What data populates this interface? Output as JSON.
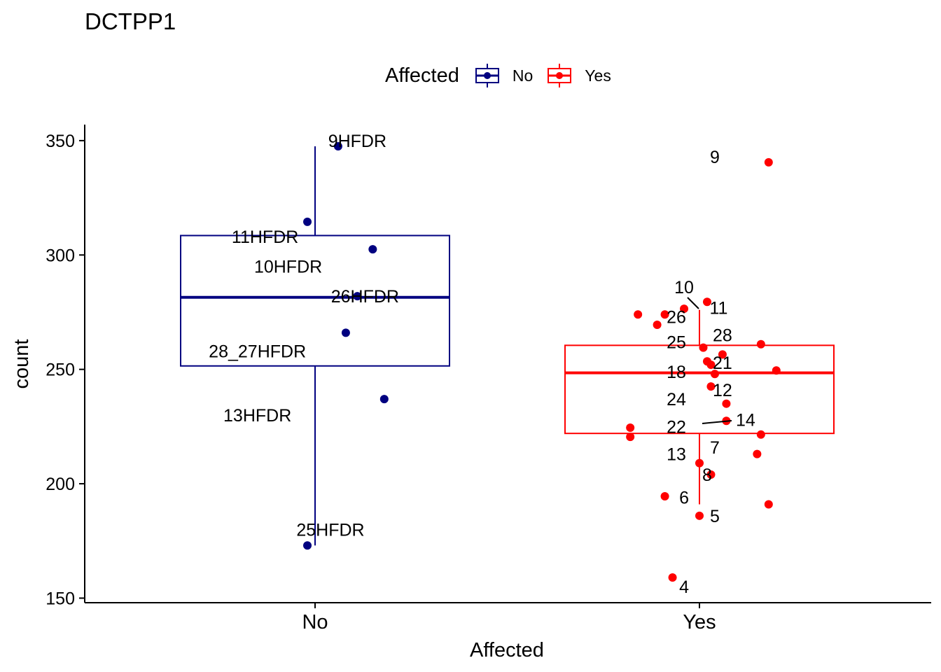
{
  "chart_data": {
    "type": "boxplot",
    "title": "DCTPP1",
    "xlabel": "Affected",
    "ylabel": "count",
    "categories": [
      "No",
      "Yes"
    ],
    "ylim": [
      148,
      357
    ],
    "yticks": [
      150,
      200,
      250,
      300,
      350
    ],
    "grid": false,
    "legend": {
      "title": "Affected",
      "position": "top",
      "entries": [
        {
          "label": "No",
          "color": "#000080"
        },
        {
          "label": "Yes",
          "color": "#FF0000"
        }
      ]
    },
    "boxes": [
      {
        "category": "No",
        "color": "#000080",
        "q1": 251.5,
        "median": 281.5,
        "q3": 308.5,
        "whisker_low": 173,
        "whisker_high": 347.5
      },
      {
        "category": "Yes",
        "color": "#FF0000",
        "q1": 222,
        "median": 248.5,
        "q3": 260.5,
        "whisker_low": 191,
        "whisker_high": 276
      }
    ],
    "series": [
      {
        "name": "No",
        "color": "#000080",
        "points": [
          {
            "x": 0.06,
            "y": 347.5,
            "label": "9HFDR",
            "lx": 0.11,
            "ly": 350
          },
          {
            "x": -0.02,
            "y": 314.5,
            "label": "11HFDR",
            "lx": -0.13,
            "ly": 308
          },
          {
            "x": 0.15,
            "y": 302.5,
            "label": "10HFDR",
            "lx": -0.07,
            "ly": 295
          },
          {
            "x": 0.11,
            "y": 282,
            "label": "26HFDR",
            "lx": 0.13,
            "ly": 282
          },
          {
            "x": 0.08,
            "y": 266,
            "label": "28_27HFDR",
            "lx": -0.15,
            "ly": 258
          },
          {
            "x": 0.18,
            "y": 237,
            "label": "13HFDR",
            "lx": -0.15,
            "ly": 230
          },
          {
            "x": -0.02,
            "y": 173,
            "label": "25HFDR",
            "lx": 0.04,
            "ly": 180
          }
        ]
      },
      {
        "name": "Yes",
        "color": "#FF0000",
        "points": [
          {
            "x": 0.18,
            "y": 340.5,
            "label": "9",
            "lx": 0.04,
            "ly": 343
          },
          {
            "x": -0.04,
            "y": 276.5,
            "label": "10",
            "lx": -0.04,
            "ly": 286
          },
          {
            "x": -0.16,
            "y": 274,
            "label": "",
            "lx": 0,
            "ly": 0
          },
          {
            "x": -0.09,
            "y": 274,
            "label": "26",
            "lx": -0.06,
            "ly": 273
          },
          {
            "x": -0.11,
            "y": 269.5,
            "label": "",
            "lx": 0,
            "ly": 0
          },
          {
            "x": 0.02,
            "y": 279.5,
            "label": "11",
            "lx": 0.05,
            "ly": 277
          },
          {
            "x": 0.16,
            "y": 261,
            "label": "",
            "lx": 0,
            "ly": 0
          },
          {
            "x": 0.01,
            "y": 259.5,
            "label": "25",
            "lx": -0.06,
            "ly": 262
          },
          {
            "x": 0.06,
            "y": 256.5,
            "label": "28",
            "lx": 0.06,
            "ly": 265
          },
          {
            "x": 0.02,
            "y": 253.5,
            "label": "",
            "lx": 0,
            "ly": 0
          },
          {
            "x": 0.03,
            "y": 252,
            "label": "21",
            "lx": 0.06,
            "ly": 253
          },
          {
            "x": 0.2,
            "y": 249.5,
            "label": "",
            "lx": 0,
            "ly": 0
          },
          {
            "x": 0.04,
            "y": 248,
            "label": "18",
            "lx": -0.06,
            "ly": 249
          },
          {
            "x": 0.03,
            "y": 242.5,
            "label": "12",
            "lx": 0.06,
            "ly": 241
          },
          {
            "x": 0.07,
            "y": 235,
            "label": "24",
            "lx": -0.06,
            "ly": 237
          },
          {
            "x": 0.07,
            "y": 227.5,
            "label": "14",
            "lx": 0.12,
            "ly": 228
          },
          {
            "x": -0.18,
            "y": 224.5,
            "label": "22",
            "lx": -0.06,
            "ly": 225
          },
          {
            "x": -0.18,
            "y": 220.5,
            "label": "",
            "lx": 0,
            "ly": 0
          },
          {
            "x": 0.16,
            "y": 221.5,
            "label": "",
            "lx": 0,
            "ly": 0
          },
          {
            "x": 0.15,
            "y": 213,
            "label": "7",
            "lx": 0.04,
            "ly": 216
          },
          {
            "x": 0.0,
            "y": 209,
            "label": "13",
            "lx": -0.06,
            "ly": 213
          },
          {
            "x": 0.03,
            "y": 204,
            "label": "8",
            "lx": 0.02,
            "ly": 204
          },
          {
            "x": -0.09,
            "y": 194.5,
            "label": "6",
            "lx": -0.04,
            "ly": 194
          },
          {
            "x": 0.18,
            "y": 191,
            "label": "",
            "lx": 0,
            "ly": 0
          },
          {
            "x": 0.0,
            "y": 186,
            "label": "5",
            "lx": 0.04,
            "ly": 186
          },
          {
            "x": -0.07,
            "y": 159,
            "label": "4",
            "lx": -0.04,
            "ly": 155
          }
        ]
      }
    ]
  }
}
